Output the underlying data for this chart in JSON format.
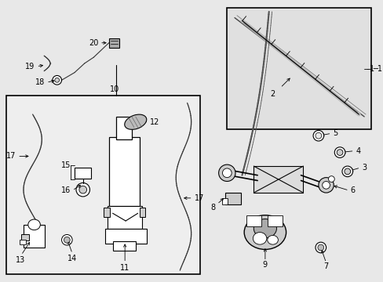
{
  "bg_color": "#e8e8e8",
  "fig_width": 4.89,
  "fig_height": 3.6,
  "dpi": 100
}
